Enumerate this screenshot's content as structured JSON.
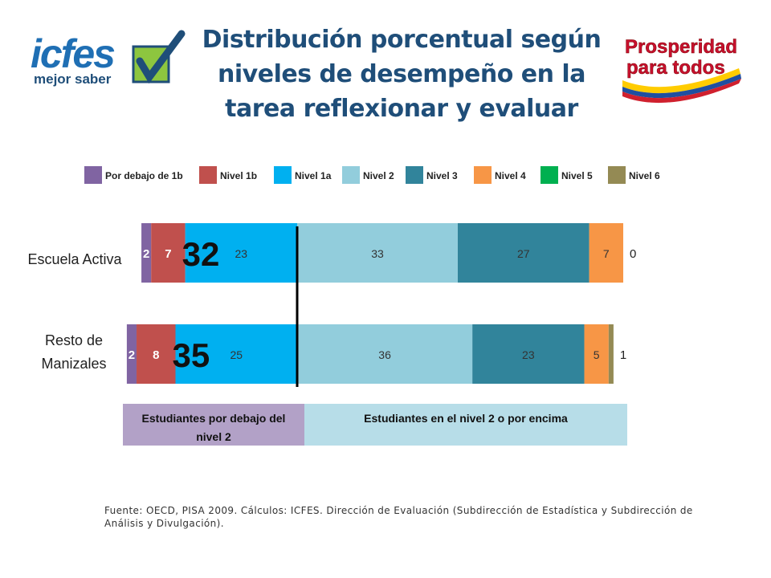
{
  "title": "Distribución porcentual según niveles de desempeño en la tarea reflexionar y evaluar",
  "logos": {
    "icfes_main": "icfes",
    "icfes_sub": "mejor saber",
    "prosperidad_line1": "Prosperidad",
    "prosperidad_line2": "para todos"
  },
  "colors": {
    "below_1b": "#8064a2",
    "nivel_1b": "#c0504d",
    "nivel_1a": "#00b0f0",
    "nivel_2": "#92cddc",
    "nivel_3": "#31849b",
    "nivel_4": "#f79646",
    "nivel_5": "#00b050",
    "nivel_6": "#948a54",
    "band_below": "#b2a1c7",
    "band_above": "#b7dde8",
    "title": "#1f4e79"
  },
  "chart_data": {
    "type": "bar",
    "orientation": "horizontal",
    "stacked": true,
    "categories": [
      "Escuela Activa",
      "Resto de Manizales"
    ],
    "category_labels": [
      [
        "Escuela Activa"
      ],
      [
        "Resto de",
        "Manizales"
      ]
    ],
    "series": [
      {
        "name": "Por debajo de 1b",
        "values": [
          2,
          2
        ]
      },
      {
        "name": "Nivel 1b",
        "values": [
          7,
          8
        ]
      },
      {
        "name": "Nivel 1a",
        "values": [
          23,
          25
        ]
      },
      {
        "name": "Nivel 2",
        "values": [
          33,
          36
        ]
      },
      {
        "name": "Nivel 3",
        "values": [
          27,
          23
        ]
      },
      {
        "name": "Nivel 4",
        "values": [
          7,
          5
        ]
      },
      {
        "name": "Nivel 5",
        "values": [
          0,
          0
        ]
      },
      {
        "name": "Nivel 6",
        "values": [
          0,
          1
        ]
      }
    ],
    "below_level2_totals": [
      32,
      35
    ],
    "trailing_labels": [
      "0",
      "1"
    ],
    "bands": [
      "Estudiantes por debajo del nivel 2",
      "Estudiantes en el nivel 2 o por encima"
    ],
    "legend_position": "top",
    "grid": false
  },
  "source": "Fuente: OECD, PISA 2009. Cálculos: ICFES. Dirección de Evaluación (Subdirección de Estadística y Subdirección de Análisis y Divulgación)."
}
